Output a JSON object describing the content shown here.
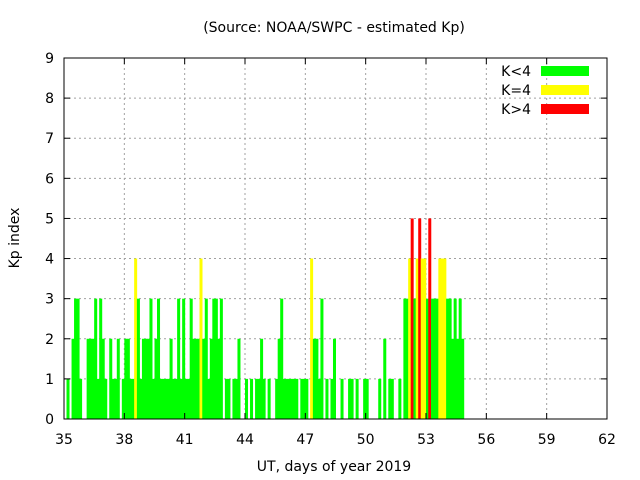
{
  "chart_data": {
    "type": "bar",
    "title": "(Source: NOAA/SWPC - estimated Kp)",
    "xlabel": "UT, days of year 2019",
    "ylabel": "Kp index",
    "xlim": [
      35,
      62
    ],
    "ylim": [
      0,
      9
    ],
    "xticks": [
      35,
      38,
      41,
      44,
      47,
      50,
      53,
      56,
      59,
      62
    ],
    "yticks": [
      0,
      1,
      2,
      3,
      4,
      5,
      6,
      7,
      8,
      9
    ],
    "grid": true,
    "legend_position": "top-right",
    "interval_days": 0.125,
    "x_start": 35,
    "series": [
      {
        "name": "K<4",
        "color": "#00ff00"
      },
      {
        "name": "K=4",
        "color": "#ffff00"
      },
      {
        "name": "K>4",
        "color": "#ff0000"
      }
    ],
    "kp": [
      0,
      1,
      0,
      2,
      3,
      3,
      1,
      0,
      0,
      2,
      2,
      2,
      3,
      1,
      3,
      2,
      1,
      0,
      2,
      1,
      1,
      2,
      0,
      1,
      2,
      2,
      1,
      1,
      4,
      3,
      1,
      2,
      2,
      2,
      3,
      1,
      2,
      3,
      1,
      1,
      1,
      1,
      2,
      1,
      1,
      3,
      1,
      3,
      1,
      1,
      3,
      2,
      2,
      2,
      4,
      2,
      3,
      1,
      2,
      3,
      3,
      2,
      3,
      0,
      1,
      1,
      0,
      1,
      1,
      2,
      0,
      0,
      1,
      0,
      1,
      0,
      1,
      1,
      2,
      1,
      0,
      1,
      0,
      0,
      1,
      2,
      3,
      1,
      1,
      1,
      1,
      1,
      1,
      0,
      1,
      1,
      1,
      0,
      4,
      2,
      2,
      1,
      3,
      0,
      1,
      0,
      1,
      2,
      0,
      0,
      1,
      0,
      0,
      1,
      1,
      0,
      1,
      0,
      0,
      1,
      1,
      0,
      0,
      0,
      0,
      1,
      0,
      2,
      0,
      1,
      1,
      0,
      0,
      1,
      0,
      3,
      3,
      4,
      5,
      3,
      4,
      5,
      4,
      4,
      3,
      5,
      3,
      3,
      3,
      4,
      4,
      4,
      3,
      3,
      2,
      3,
      2,
      3,
      2,
      0
    ]
  }
}
